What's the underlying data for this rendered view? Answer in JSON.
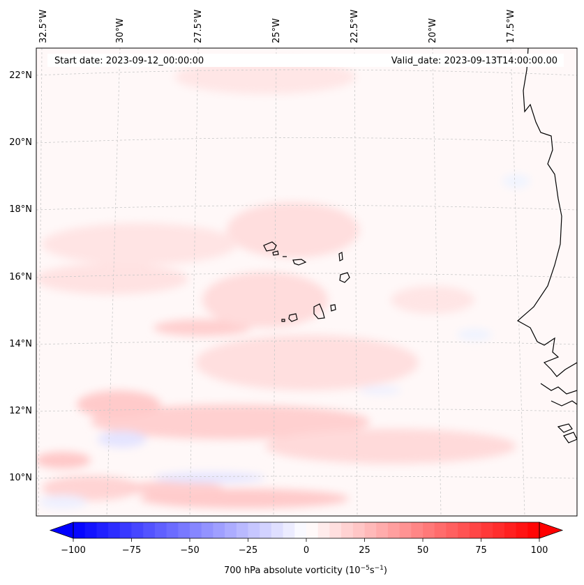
{
  "map": {
    "start_label": "Start date: 2023-09-12_00:00:00",
    "valid_label": "Valid_date: 2023-09-13T14:00:00.00",
    "lon_labels": [
      "32.5°W",
      "30°W",
      "27.5°W",
      "25°W",
      "22.5°W",
      "20°W",
      "17.5°W"
    ],
    "lat_labels": [
      "22°N",
      "20°N",
      "18°N",
      "16°N",
      "14°N",
      "12°N",
      "10°N"
    ],
    "field": "700 hPa absolute vorticity",
    "colors": {
      "positive": "#ff0000",
      "negative": "#0000ff",
      "coastline": "#000000",
      "gridline": "#c8c8c8"
    }
  },
  "colorbar": {
    "ticks": [
      "−100",
      "−75",
      "−50",
      "−25",
      "0",
      "25",
      "50",
      "75",
      "100"
    ],
    "range": [
      -100,
      100
    ],
    "label_prefix": "700 hPa absolute vorticity (10",
    "label_exp1": "−5",
    "label_mid": "s",
    "label_exp2": "−1",
    "label_suffix": ")"
  }
}
